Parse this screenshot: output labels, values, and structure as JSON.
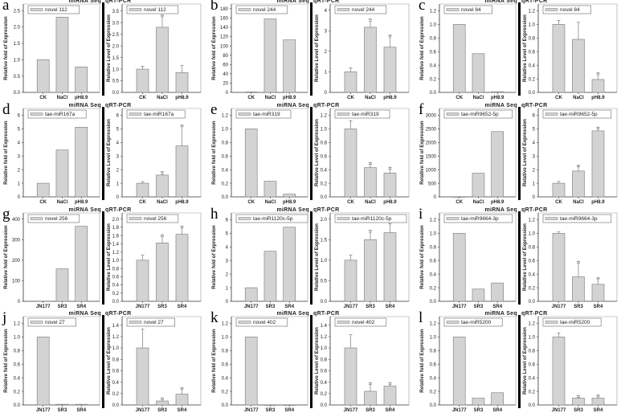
{
  "labels": {
    "seq_header": "miRNA Seq",
    "pcr_header": "qRT-PCR",
    "seq_ylabel": "Relative fold of Expression",
    "pcr_ylabel": "Relative Level of Expression"
  },
  "colors": {
    "bar": "#d3d3d3",
    "bar_edge": "#777777",
    "axis": "#333333"
  },
  "chart_data": [
    {
      "type": "bar",
      "panel": "a",
      "legend": "novel 112",
      "categories": [
        "CK",
        "NaCl",
        "pH8.9"
      ],
      "seq": {
        "values": [
          1,
          2.3,
          0.78
        ],
        "ylim": [
          0,
          2.7
        ],
        "ticks": [
          0,
          0.5,
          1.0,
          1.5,
          2.0,
          2.5
        ]
      },
      "pcr": {
        "values": [
          1,
          2.8,
          0.85
        ],
        "errors": [
          0.13,
          0.45,
          0.3
        ],
        "sig": [
          "",
          "**",
          ""
        ],
        "ylim": [
          0,
          3.8
        ],
        "ticks": [
          0,
          0.5,
          1.0,
          1.5,
          2.0,
          2.5,
          3.0,
          3.5
        ]
      }
    },
    {
      "type": "bar",
      "panel": "b",
      "legend": "novel 244",
      "categories": [
        "CK",
        "NaCl",
        "pH8.9"
      ],
      "seq": {
        "values": [
          1,
          158,
          113
        ],
        "ylim": [
          0,
          190
        ],
        "ticks": [
          0,
          20,
          40,
          60,
          80,
          100,
          120,
          140,
          160,
          180
        ]
      },
      "pcr": {
        "values": [
          1,
          3.17,
          2.2
        ],
        "errors": [
          0.2,
          0.3,
          0.5
        ],
        "sig": [
          "",
          "**",
          "**"
        ],
        "ylim": [
          0,
          4.3
        ],
        "ticks": [
          0,
          1,
          2,
          3,
          4
        ]
      }
    },
    {
      "type": "bar",
      "panel": "c",
      "legend": "novel 84",
      "categories": [
        "CK",
        "NaCl",
        "pH8.9"
      ],
      "seq": {
        "values": [
          1,
          0.57,
          0.01
        ],
        "ylim": [
          0,
          1.3
        ],
        "ticks": [
          0,
          0.2,
          0.4,
          0.6,
          0.8,
          1.0,
          1.2
        ]
      },
      "pcr": {
        "values": [
          1,
          0.78,
          0.19
        ],
        "errors": [
          0.06,
          0.25,
          0.07
        ],
        "sig": [
          "",
          "",
          "**"
        ],
        "ylim": [
          0,
          1.3
        ],
        "ticks": [
          0,
          0.2,
          0.4,
          0.6,
          0.8,
          1.0,
          1.2
        ]
      }
    },
    {
      "type": "bar",
      "panel": "d",
      "legend": "tae-miR167a",
      "categories": [
        "CK",
        "NaCl",
        "pH8.9"
      ],
      "seq": {
        "values": [
          1,
          3.45,
          5.12
        ],
        "ylim": [
          0,
          6.5
        ],
        "ticks": [
          0,
          1,
          2,
          3,
          4,
          5,
          6
        ]
      },
      "pcr": {
        "values": [
          1,
          1.6,
          3.75
        ],
        "errors": [
          0.12,
          0.1,
          1.4
        ],
        "sig": [
          "",
          "**",
          "**"
        ],
        "ylim": [
          0,
          6.5
        ],
        "ticks": [
          0,
          1,
          2,
          3,
          4,
          5,
          6
        ]
      }
    },
    {
      "type": "bar",
      "panel": "e",
      "legend": "tae-miR319",
      "categories": [
        "CK",
        "NaCl",
        "pH8.9"
      ],
      "seq": {
        "values": [
          1,
          0.23,
          0.04
        ],
        "ylim": [
          0,
          1.3
        ],
        "ticks": [
          0,
          0.2,
          0.4,
          0.6,
          0.8,
          1.0,
          1.2
        ]
      },
      "pcr": {
        "values": [
          1,
          0.43,
          0.35
        ],
        "errors": [
          0.12,
          0.05,
          0.06
        ],
        "sig": [
          "",
          "**",
          "**"
        ],
        "ylim": [
          0,
          1.3
        ],
        "ticks": [
          0,
          0.2,
          0.4,
          0.6,
          0.8,
          1.0,
          1.2
        ]
      }
    },
    {
      "type": "bar",
      "panel": "f",
      "legend": "tae-miR9652-5p",
      "categories": [
        "CK",
        "NaCl",
        "pH8.9"
      ],
      "seq": {
        "values": [
          1,
          870,
          2400
        ],
        "ylim": [
          0,
          3250
        ],
        "ticks": [
          0,
          500,
          1000,
          1500,
          2000,
          2500,
          3000
        ]
      },
      "pcr": {
        "values": [
          1,
          1.9,
          4.85
        ],
        "errors": [
          0.13,
          0.3,
          0.15
        ],
        "sig": [
          "",
          "**",
          "**"
        ],
        "ylim": [
          0,
          6.5
        ],
        "ticks": [
          0,
          1,
          2,
          3,
          4,
          5,
          6
        ]
      }
    },
    {
      "type": "bar",
      "panel": "g",
      "legend": "novel 256",
      "categories": [
        "JN177",
        "SR3",
        "SR4"
      ],
      "seq": {
        "values": [
          1,
          158,
          365
        ],
        "ylim": [
          0,
          430
        ],
        "ticks": [
          0,
          100,
          200,
          300,
          400
        ]
      },
      "pcr": {
        "values": [
          1,
          1.42,
          1.63
        ],
        "errors": [
          0.12,
          0.15,
          0.15
        ],
        "sig": [
          "",
          "**",
          "**"
        ],
        "ylim": [
          0,
          2.15
        ],
        "ticks": [
          0,
          0.2,
          0.4,
          0.6,
          0.8,
          1.0,
          1.2,
          1.4,
          1.6,
          1.8,
          2.0
        ]
      }
    },
    {
      "type": "bar",
      "panel": "h",
      "legend": "tae-miR1120c-5p",
      "categories": [
        "JN177",
        "SR3",
        "SR4"
      ],
      "seq": {
        "values": [
          1,
          3.68,
          5.45
        ],
        "ylim": [
          0,
          6.5
        ],
        "ticks": [
          0,
          1,
          2,
          3,
          4,
          5,
          6
        ]
      },
      "pcr": {
        "values": [
          1,
          1.5,
          1.67
        ],
        "errors": [
          0.13,
          0.18,
          0.22
        ],
        "sig": [
          "",
          "**",
          "**"
        ],
        "ylim": [
          0,
          2.15
        ],
        "ticks": [
          0,
          0.5,
          1.0,
          1.5,
          2.0
        ]
      }
    },
    {
      "type": "bar",
      "panel": "i",
      "legend": "tae-miR9664-3p",
      "categories": [
        "JN177",
        "SR3",
        "SR4"
      ],
      "seq": {
        "values": [
          1,
          0.18,
          0.27
        ],
        "ylim": [
          0,
          1.3
        ],
        "ticks": [
          0,
          0.2,
          0.4,
          0.6,
          0.8,
          1.0,
          1.2
        ]
      },
      "pcr": {
        "values": [
          1,
          0.36,
          0.25
        ],
        "errors": [
          0.02,
          0.2,
          0.07
        ],
        "sig": [
          "",
          "**",
          "**"
        ],
        "ylim": [
          0,
          1.3
        ],
        "ticks": [
          0,
          0.2,
          0.4,
          0.6,
          0.8,
          1.0,
          1.2
        ]
      }
    },
    {
      "type": "bar",
      "panel": "j",
      "legend": "novel 27",
      "categories": [
        "JN177",
        "SR3",
        "SR4"
      ],
      "seq": {
        "values": [
          1,
          0.01,
          0.01
        ],
        "ylim": [
          0,
          1.3
        ],
        "ticks": [
          0,
          0.2,
          0.4,
          0.6,
          0.8,
          1.0,
          1.2
        ]
      },
      "pcr": {
        "values": [
          1,
          0.07,
          0.19
        ],
        "errors": [
          0.33,
          0.02,
          0.08
        ],
        "sig": [
          "",
          "**",
          "**"
        ],
        "ylim": [
          0,
          1.55
        ],
        "ticks": [
          0,
          0.2,
          0.4,
          0.6,
          0.8,
          1.0,
          1.2,
          1.4
        ]
      }
    },
    {
      "type": "bar",
      "panel": "k",
      "legend": "novel 402",
      "categories": [
        "JN177",
        "SR3",
        "SR4"
      ],
      "seq": {
        "values": [
          1,
          0,
          0
        ],
        "ylim": [
          0,
          1.3
        ],
        "ticks": [
          0,
          0.2,
          0.4,
          0.6,
          0.8,
          1.0,
          1.2
        ]
      },
      "pcr": {
        "values": [
          1,
          0.24,
          0.33
        ],
        "errors": [
          0.23,
          0.12,
          0.03
        ],
        "sig": [
          "",
          "**",
          "**"
        ],
        "ylim": [
          0,
          1.55
        ],
        "ticks": [
          0,
          0.2,
          0.4,
          0.6,
          0.8,
          1.0,
          1.2,
          1.4
        ]
      }
    },
    {
      "type": "bar",
      "panel": "l",
      "legend": "tae-miR5200",
      "categories": [
        "JN177",
        "SR3",
        "SR4"
      ],
      "seq": {
        "values": [
          1,
          0.1,
          0.18
        ],
        "ylim": [
          0,
          1.3
        ],
        "ticks": [
          0,
          0.2,
          0.4,
          0.6,
          0.8,
          1.0,
          1.2
        ]
      },
      "pcr": {
        "values": [
          1,
          0.1,
          0.1
        ],
        "errors": [
          0.06,
          0.01,
          0.02
        ],
        "sig": [
          "",
          "**",
          "**"
        ],
        "ylim": [
          0,
          1.3
        ],
        "ticks": [
          0,
          0.2,
          0.4,
          0.6,
          0.8,
          1.0,
          1.2
        ]
      }
    }
  ]
}
